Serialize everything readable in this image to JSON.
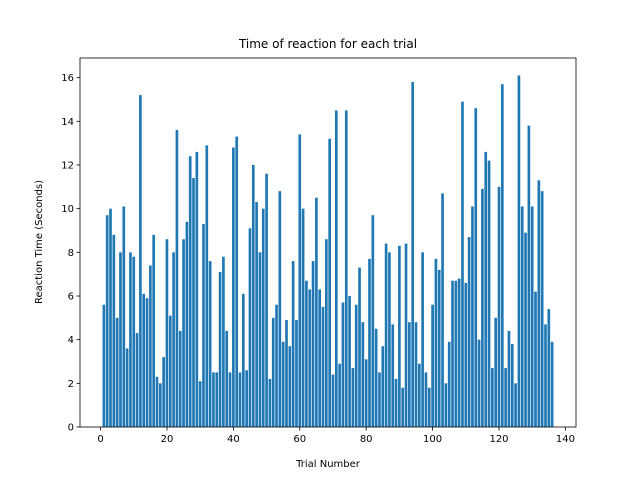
{
  "chart_data": {
    "type": "bar",
    "title": "Time of reaction for each trial",
    "xlabel": "Trial Number",
    "ylabel": "Reaction Time (Seconds)",
    "color": "#1f77b4",
    "x": [
      1,
      2,
      3,
      4,
      5,
      6,
      7,
      8,
      9,
      10,
      11,
      12,
      13,
      14,
      15,
      16,
      17,
      18,
      19,
      20,
      21,
      22,
      23,
      24,
      25,
      26,
      27,
      28,
      29,
      30,
      31,
      32,
      33,
      34,
      35,
      36,
      37,
      38,
      39,
      40,
      41,
      42,
      43,
      44,
      45,
      46,
      47,
      48,
      49,
      50,
      51,
      52,
      53,
      54,
      55,
      56,
      57,
      58,
      59,
      60,
      61,
      62,
      63,
      64,
      65,
      66,
      67,
      68,
      69,
      70,
      71,
      72,
      73,
      74,
      75,
      76,
      77,
      78,
      79,
      80,
      81,
      82,
      83,
      84,
      85,
      86,
      87,
      88,
      89,
      90,
      91,
      92,
      93,
      94,
      95,
      96,
      97,
      98,
      99,
      100,
      101,
      102,
      103,
      104,
      105,
      106,
      107,
      108,
      109,
      110,
      111,
      112,
      113,
      114,
      115,
      116,
      117,
      118,
      119,
      120,
      121,
      122,
      123,
      124,
      125,
      126,
      127,
      128,
      129,
      130,
      131,
      132,
      133,
      134,
      135,
      136
    ],
    "values": [
      5.6,
      9.7,
      10.0,
      8.8,
      5.0,
      8.0,
      10.1,
      3.6,
      8.0,
      7.8,
      4.3,
      15.2,
      6.1,
      5.9,
      7.4,
      8.8,
      2.3,
      2.0,
      3.2,
      8.6,
      5.1,
      8.0,
      13.6,
      4.4,
      8.6,
      9.4,
      12.4,
      11.4,
      12.6,
      2.1,
      9.3,
      12.9,
      7.6,
      2.5,
      2.5,
      7.1,
      7.8,
      4.4,
      2.5,
      12.8,
      13.3,
      2.5,
      6.1,
      2.6,
      9.1,
      12.0,
      10.3,
      8.0,
      10.0,
      11.6,
      2.2,
      5.0,
      5.6,
      10.8,
      3.9,
      4.9,
      3.7,
      7.6,
      4.9,
      13.4,
      10.0,
      6.7,
      6.3,
      7.6,
      10.5,
      6.3,
      5.5,
      8.6,
      13.2,
      2.4,
      14.5,
      2.9,
      5.7,
      14.5,
      6.0,
      2.7,
      5.6,
      7.3,
      4.8,
      3.1,
      7.7,
      9.7,
      4.5,
      2.5,
      3.7,
      8.4,
      8.0,
      4.7,
      2.2,
      8.3,
      1.8,
      8.4,
      4.8,
      15.8,
      4.8,
      2.9,
      8.0,
      2.5,
      1.8,
      5.6,
      7.7,
      7.2,
      10.7,
      2.0,
      3.9,
      6.7,
      6.7,
      6.8,
      14.9,
      6.6,
      8.7,
      10.1,
      14.6,
      4.0,
      10.9,
      12.6,
      12.2,
      2.7,
      5.0,
      11.0,
      15.7,
      2.7,
      4.4,
      3.8,
      2.0,
      16.1,
      10.1,
      8.9,
      13.8,
      10.1,
      6.2,
      11.3,
      10.8,
      4.7,
      5.4,
      3.9
    ],
    "xlim": [
      -6.19,
      143.19
    ],
    "xticks": [
      0,
      20,
      40,
      60,
      80,
      100,
      120,
      140
    ],
    "ylim": [
      0,
      16.9
    ],
    "yticks": [
      0,
      2,
      4,
      6,
      8,
      10,
      12,
      14,
      16
    ]
  }
}
